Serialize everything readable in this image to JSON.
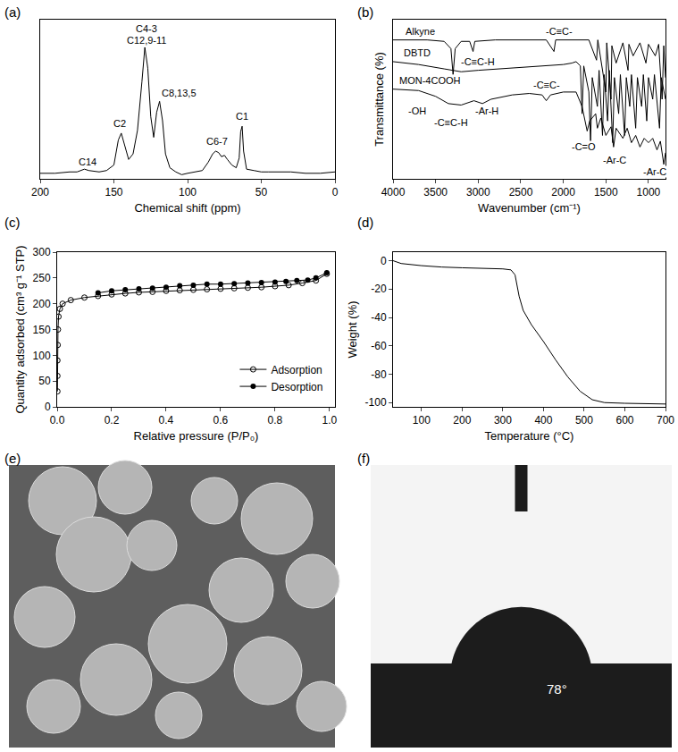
{
  "chart_data": [
    {
      "panel": "(a)",
      "type": "line",
      "x_label": "Chemical shift (ppm)",
      "tick_labels": "x",
      "xlim": [
        200,
        0
      ],
      "xticks": [
        200,
        150,
        100,
        50,
        0
      ],
      "ylim": [
        0,
        115
      ],
      "series": [
        {
          "color": "#000000",
          "x": [
            200,
            190,
            180,
            175,
            170,
            167,
            160,
            155,
            150,
            147,
            145,
            143,
            140,
            137,
            134,
            131,
            129,
            127,
            125,
            123,
            121,
            119,
            117,
            115,
            112,
            108,
            104,
            100,
            95,
            90,
            86,
            83,
            81,
            79,
            77,
            75,
            73,
            70,
            67,
            65,
            64,
            63,
            62,
            60,
            55,
            50,
            45,
            40,
            30,
            20,
            10,
            0
          ],
          "values": [
            4,
            4,
            5,
            5,
            7,
            6,
            5,
            6,
            10,
            28,
            33,
            25,
            14,
            18,
            35,
            70,
            95,
            80,
            45,
            30,
            48,
            56,
            42,
            18,
            8,
            5,
            3,
            4,
            5,
            6,
            12,
            18,
            20,
            19,
            16,
            17,
            14,
            10,
            8,
            15,
            34,
            38,
            20,
            7,
            6,
            5,
            5,
            5,
            5,
            4,
            4,
            5
          ]
        }
      ],
      "annotations": [
        {
          "text": "C14",
          "x": 168,
          "y": 12
        },
        {
          "text": "C2",
          "x": 146,
          "y": 40
        },
        {
          "text": "C4-3",
          "x": 128,
          "y": 108.5
        },
        {
          "text": "C12,9-11",
          "x": 128,
          "y": 100
        },
        {
          "text": "C8,13,5",
          "x": 106,
          "y": 62
        },
        {
          "text": "C6-7",
          "x": 80,
          "y": 27
        },
        {
          "text": "C1",
          "x": 63,
          "y": 45
        }
      ]
    },
    {
      "panel": "(b)",
      "type": "line",
      "x_label": "Wavenumber (cm⁻¹)",
      "y_label": "Transmittance (%)",
      "tick_labels": "x",
      "xlim": [
        4000,
        800
      ],
      "xticks": [
        4000,
        3500,
        3000,
        2500,
        2000,
        1500,
        1000
      ],
      "ylim": [
        0,
        110
      ],
      "series": [
        {
          "color": "#000000",
          "x": [
            4000,
            3600,
            3400,
            3320,
            3295,
            3270,
            3200,
            3100,
            3060,
            3040,
            2800,
            2400,
            2200,
            2110,
            2090,
            1700,
            1610,
            1595,
            1500,
            1490,
            1440,
            1430,
            1380,
            1300,
            1240,
            1230,
            1180,
            1100,
            1030,
            1000,
            920,
            880,
            840,
            820,
            800
          ],
          "values": [
            96,
            96,
            95,
            90,
            72,
            90,
            95,
            95,
            88,
            95,
            96,
            96,
            96,
            88,
            96,
            96,
            82,
            96,
            60,
            94,
            55,
            92,
            80,
            94,
            75,
            93,
            85,
            94,
            80,
            93,
            85,
            93,
            55,
            92,
            70
          ]
        },
        {
          "color": "#000000",
          "x": [
            4000,
            3700,
            3400,
            3200,
            3000,
            2500,
            2000,
            1900,
            1850,
            1800,
            1780,
            1760,
            1700,
            1680,
            1660,
            1600,
            1580,
            1540,
            1520,
            1480,
            1460,
            1420,
            1400,
            1350,
            1330,
            1280,
            1260,
            1220,
            1200,
            1150,
            1130,
            1080,
            1060,
            1020,
            1000,
            950,
            930,
            870,
            850,
            800
          ],
          "values": [
            81,
            79,
            76,
            74,
            75,
            77,
            79,
            80,
            81,
            78,
            45,
            78,
            60,
            25,
            70,
            50,
            75,
            30,
            72,
            40,
            75,
            25,
            70,
            45,
            72,
            30,
            70,
            50,
            72,
            35,
            70,
            50,
            72,
            40,
            70,
            55,
            72,
            35,
            70,
            55
          ]
        },
        {
          "color": "#000000",
          "x": [
            4000,
            3700,
            3500,
            3350,
            3200,
            3050,
            2950,
            2850,
            2600,
            2400,
            2250,
            2200,
            2150,
            2000,
            1850,
            1780,
            1720,
            1690,
            1620,
            1600,
            1560,
            1500,
            1440,
            1410,
            1380,
            1300,
            1250,
            1200,
            1150,
            1100,
            1050,
            1000,
            950,
            900,
            860,
            820,
            800
          ],
          "values": [
            62,
            61,
            57,
            52,
            51,
            54,
            52,
            55,
            58,
            59,
            58,
            54,
            58,
            60,
            60,
            50,
            33,
            40,
            45,
            35,
            42,
            30,
            36,
            22,
            35,
            28,
            35,
            25,
            30,
            22,
            28,
            25,
            28,
            20,
            26,
            10,
            18
          ]
        }
      ],
      "annotations": [
        {
          "text": "Alkyne",
          "x": 3680,
          "y": 102
        },
        {
          "text": "-C≡C-H",
          "x": 3000,
          "y": 81
        },
        {
          "text": "-C≡C-",
          "x": 2050,
          "y": 102
        },
        {
          "text": "DBTD",
          "x": 3720,
          "y": 87
        },
        {
          "text": "MON-4COOH",
          "x": 3560,
          "y": 68
        },
        {
          "text": "-OH",
          "x": 3720,
          "y": 47
        },
        {
          "text": "-C≡C-H",
          "x": 3320,
          "y": 39
        },
        {
          "text": "-Ar-H",
          "x": 2900,
          "y": 47
        },
        {
          "text": "-C≡C-",
          "x": 2200,
          "y": 65
        },
        {
          "text": "-C=O",
          "x": 1760,
          "y": 22
        },
        {
          "text": "-Ar-C",
          "x": 1400,
          "y": 13
        },
        {
          "text": "-Ar-C",
          "x": 930,
          "y": 5
        }
      ]
    },
    {
      "panel": "(c)",
      "type": "line",
      "x_label": "Relative pressure (P/P₀)",
      "y_label": "Quantity adsorbed (cm³ g⁻¹ STP)",
      "legend": "lower right",
      "xlim": [
        0,
        1.02
      ],
      "xticks": [
        {
          "value": 0,
          "label": "0.0"
        },
        {
          "value": 0.2,
          "label": "0.2"
        },
        {
          "value": 0.4,
          "label": "0.4"
        },
        {
          "value": 0.6,
          "label": "0.6"
        },
        {
          "value": 0.8,
          "label": "0.8"
        },
        {
          "value": 1,
          "label": "1.0"
        }
      ],
      "ylim": [
        0,
        300
      ],
      "yticks": [
        0,
        50,
        100,
        150,
        200,
        250,
        300
      ],
      "series": [
        {
          "name": "Adsorption",
          "color": "#000000",
          "marker": "open_circle",
          "x": [
            0.001,
            0.001,
            0.001,
            0.002,
            0.003,
            0.005,
            0.01,
            0.02,
            0.05,
            0.1,
            0.15,
            0.2,
            0.25,
            0.3,
            0.35,
            0.4,
            0.45,
            0.5,
            0.55,
            0.6,
            0.65,
            0.7,
            0.75,
            0.8,
            0.85,
            0.9,
            0.95,
            0.99
          ],
          "values": [
            30,
            60,
            90,
            120,
            150,
            175,
            190,
            200,
            207,
            212,
            215,
            218,
            220,
            222,
            223,
            225,
            226,
            227,
            228,
            229,
            230,
            231,
            232,
            234,
            236,
            240,
            245,
            258
          ]
        },
        {
          "name": "Desorption",
          "color": "#000000",
          "marker": "filled_circle",
          "x": [
            0.99,
            0.95,
            0.92,
            0.88,
            0.84,
            0.8,
            0.75,
            0.7,
            0.65,
            0.6,
            0.55,
            0.5,
            0.45,
            0.4,
            0.35,
            0.3,
            0.25,
            0.2,
            0.15
          ],
          "values": [
            260,
            250,
            246,
            245,
            243,
            242,
            241,
            240,
            239,
            238,
            238,
            236,
            235,
            232,
            230,
            229,
            227,
            225,
            221
          ]
        }
      ]
    },
    {
      "panel": "(d)",
      "type": "line",
      "x_label": "Temperature (°C)",
      "y_label": "Weight (%)",
      "xlim": [
        30,
        700
      ],
      "xticks": [
        100,
        200,
        300,
        400,
        500,
        600,
        700
      ],
      "ylim": [
        -103,
        6
      ],
      "yticks": [
        -100,
        -80,
        -60,
        -40,
        -20,
        0
      ],
      "series": [
        {
          "color": "#000000",
          "x": [
            30,
            50,
            100,
            150,
            200,
            250,
            300,
            320,
            330,
            340,
            350,
            370,
            400,
            430,
            460,
            490,
            520,
            550,
            600,
            700
          ],
          "values": [
            0,
            -2,
            -3.5,
            -4.5,
            -5,
            -5.2,
            -5.8,
            -6.5,
            -10,
            -25,
            -35,
            -45,
            -57,
            -70,
            -82,
            -92,
            -98,
            -100,
            -100.5,
            -101
          ]
        }
      ]
    }
  ],
  "images": [
    {
      "panel": "(e)"
    },
    {
      "panel": "(f)",
      "contact_angle": 78,
      "angle_label": "78°"
    }
  ]
}
